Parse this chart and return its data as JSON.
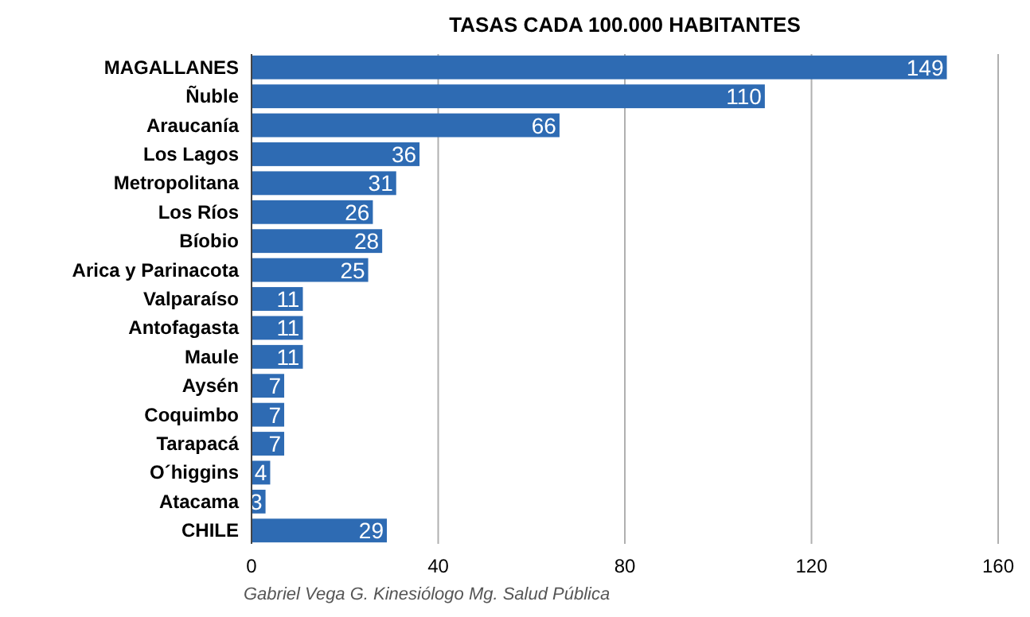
{
  "chart_data": {
    "type": "bar",
    "orientation": "horizontal",
    "title": "TASAS CADA 100.000 HABITANTES",
    "categories": [
      "MAGALLANES",
      "Ñuble",
      "Araucanía",
      "Los Lagos",
      "Metropolitana",
      "Los Ríos",
      "Bíobio",
      "Arica y Parinacota",
      "Valparaíso",
      "Antofagasta",
      "Maule",
      "Aysén",
      "Coquimbo",
      "Tarapacá",
      "O´higgins",
      "Atacama",
      "CHILE"
    ],
    "values": [
      149,
      110,
      66,
      36,
      31,
      26,
      28,
      25,
      11,
      11,
      11,
      7,
      7,
      7,
      4,
      3,
      29
    ],
    "color": "#2e6bb3",
    "xlim": [
      0,
      160
    ],
    "xticks": [
      0,
      40,
      80,
      120,
      160
    ],
    "grid": "x",
    "data_labels": true,
    "annotations": [
      "Gabriel Vega G. Kinesiólogo Mg. Salud Pública"
    ]
  }
}
